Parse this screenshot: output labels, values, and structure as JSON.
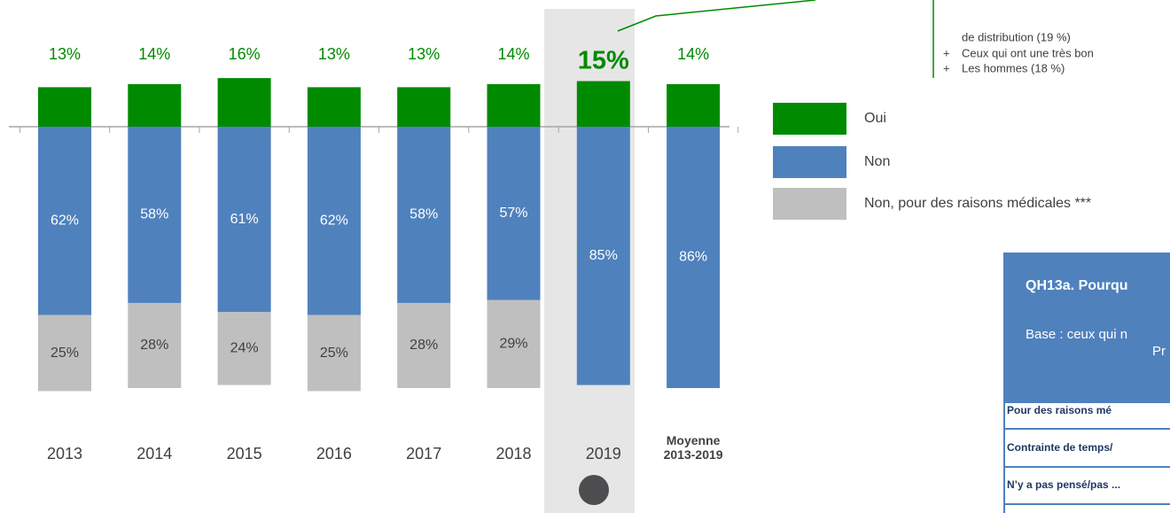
{
  "chart_data": {
    "type": "diverging-stacked-bar",
    "categories": [
      "2013",
      "2014",
      "2015",
      "2016",
      "2017",
      "2018",
      "2019",
      "Moyenne 2013-2019"
    ],
    "highlight_index": 6,
    "series": [
      {
        "name": "Oui",
        "color": "#008a00",
        "direction": "up",
        "values": [
          13,
          14,
          16,
          13,
          13,
          14,
          15,
          14
        ],
        "value_labels": [
          "13%",
          "14%",
          "16%",
          "13%",
          "13%",
          "14%",
          "15%",
          "14%"
        ]
      },
      {
        "name": "Non",
        "color": "#4f81bd",
        "direction": "down",
        "values": [
          62,
          58,
          61,
          62,
          58,
          57,
          85,
          86
        ],
        "value_labels": [
          "62%",
          "58%",
          "61%",
          "62%",
          "58%",
          "57%",
          "85%",
          "86%"
        ]
      },
      {
        "name": "Non, pour des raisons médicales ***",
        "color": "#bfbfbf",
        "direction": "down",
        "values": [
          25,
          28,
          24,
          25,
          28,
          29,
          null,
          null
        ],
        "value_labels": [
          "25%",
          "28%",
          "24%",
          "25%",
          "28%",
          "29%",
          null,
          null
        ]
      }
    ]
  },
  "callout": {
    "lines": [
      "de distribution (19 %)",
      "Ceux qui ont une très bon",
      "Les hommes (18 %)"
    ],
    "bullet": "+"
  },
  "panel": {
    "title": "QH13a. Pourqu",
    "base_line1": "Base : ceux qui n",
    "base_line2": "Pr",
    "rows": [
      "Pour des raisons mé",
      "Contrainte de temps/",
      "N’y a pas pensé/pas ..."
    ]
  }
}
